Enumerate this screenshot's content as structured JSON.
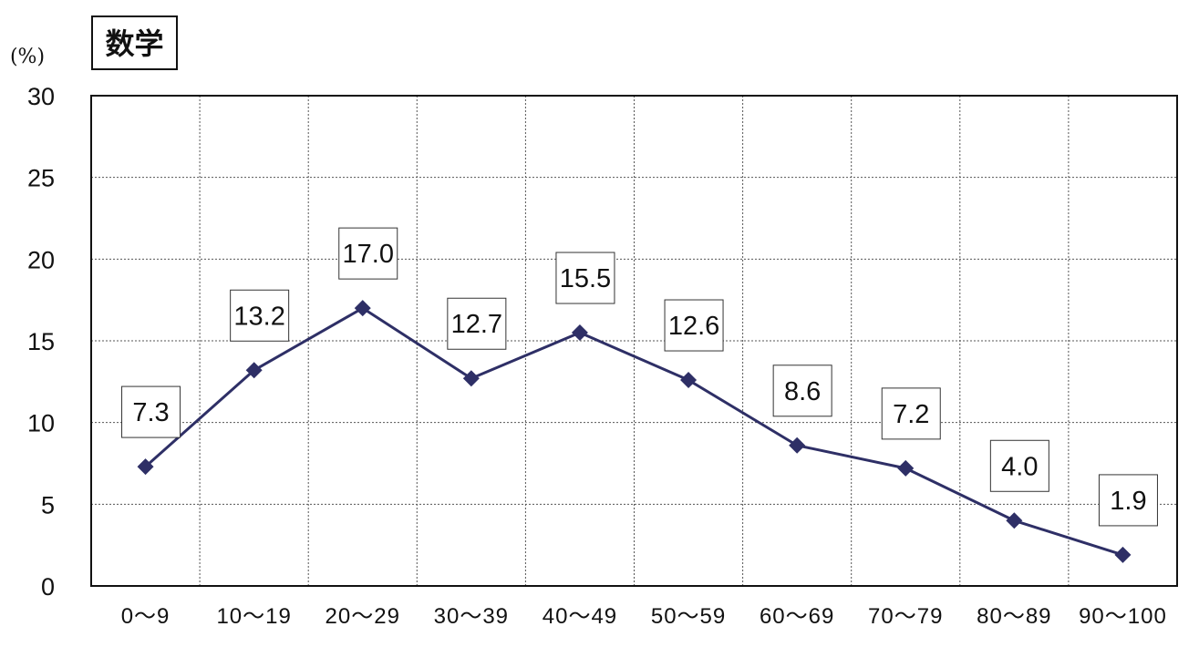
{
  "chart_data": {
    "type": "line",
    "title": "数学",
    "ylabel": "(%)",
    "xlabel": "",
    "categories": [
      "0～9",
      "10～19",
      "20～29",
      "30～39",
      "40～49",
      "50～59",
      "60～69",
      "70～79",
      "80～89",
      "90～100"
    ],
    "series": [
      {
        "values": [
          7.3,
          13.2,
          17.0,
          12.7,
          15.5,
          12.6,
          8.6,
          7.2,
          4.0,
          1.9
        ]
      }
    ],
    "data_labels": [
      "7.3",
      "13.2",
      "17.0",
      "12.7",
      "15.5",
      "12.6",
      "8.6",
      "7.2",
      "4.0",
      "1.9"
    ],
    "yticks": [
      0,
      5,
      10,
      15,
      20,
      25,
      30
    ],
    "ylim": [
      0,
      30
    ],
    "grid": true,
    "marker": "diamond",
    "line_color": "#2e2f66",
    "legend": "none"
  }
}
